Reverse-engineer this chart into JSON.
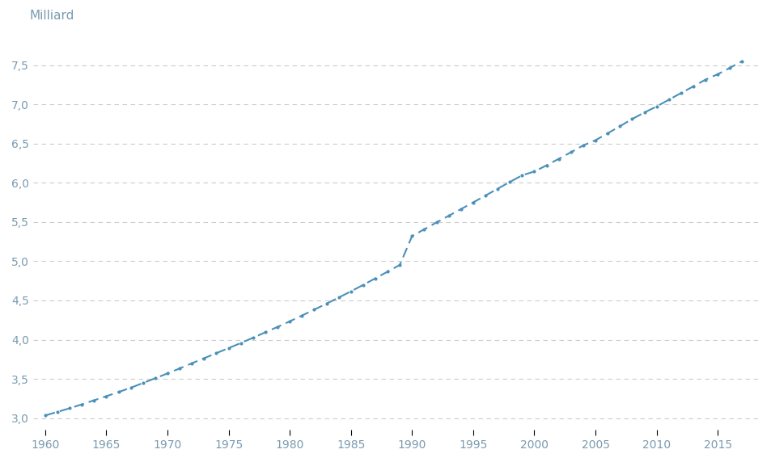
{
  "ylabel": "Milliard",
  "years": [
    1960,
    1961,
    1962,
    1963,
    1964,
    1965,
    1966,
    1967,
    1968,
    1969,
    1970,
    1971,
    1972,
    1973,
    1974,
    1975,
    1976,
    1977,
    1978,
    1979,
    1980,
    1981,
    1982,
    1983,
    1984,
    1985,
    1986,
    1987,
    1988,
    1989,
    1990,
    1991,
    1992,
    1993,
    1994,
    1995,
    1996,
    1997,
    1998,
    1999,
    2000,
    2001,
    2002,
    2003,
    2004,
    2005,
    2006,
    2007,
    2008,
    2009,
    2010,
    2011,
    2012,
    2013,
    2014,
    2015,
    2016,
    2017
  ],
  "population_billions": [
    3.034,
    3.08,
    3.126,
    3.176,
    3.228,
    3.28,
    3.333,
    3.388,
    3.448,
    3.509,
    3.57,
    3.634,
    3.7,
    3.764,
    3.829,
    3.893,
    3.958,
    4.025,
    4.094,
    4.163,
    4.234,
    4.308,
    4.383,
    4.459,
    4.537,
    4.616,
    4.698,
    4.782,
    4.867,
    4.953,
    5.32,
    5.407,
    5.494,
    5.579,
    5.664,
    5.75,
    5.836,
    5.924,
    6.01,
    6.095,
    6.143,
    6.222,
    6.305,
    6.389,
    6.476,
    6.542,
    6.63,
    6.72,
    6.812,
    6.895,
    6.972,
    7.058,
    7.143,
    7.228,
    7.314,
    7.383,
    7.465,
    7.55
  ],
  "line_color": "#4a90b8",
  "grid_color": "#cccccc",
  "background_color": "#ffffff",
  "text_color": "#7a9ab0",
  "xlim": [
    1959,
    2018.5
  ],
  "ylim": [
    2.85,
    7.85
  ],
  "yticks": [
    3.0,
    3.5,
    4.0,
    4.5,
    5.0,
    5.5,
    6.0,
    6.5,
    7.0,
    7.5
  ],
  "xticks": [
    1960,
    1965,
    1970,
    1975,
    1980,
    1985,
    1990,
    1995,
    2000,
    2005,
    2010,
    2015
  ],
  "ylabel_fontsize": 11,
  "tick_fontsize": 10,
  "figsize": [
    9.54,
    5.72
  ],
  "dpi": 100
}
